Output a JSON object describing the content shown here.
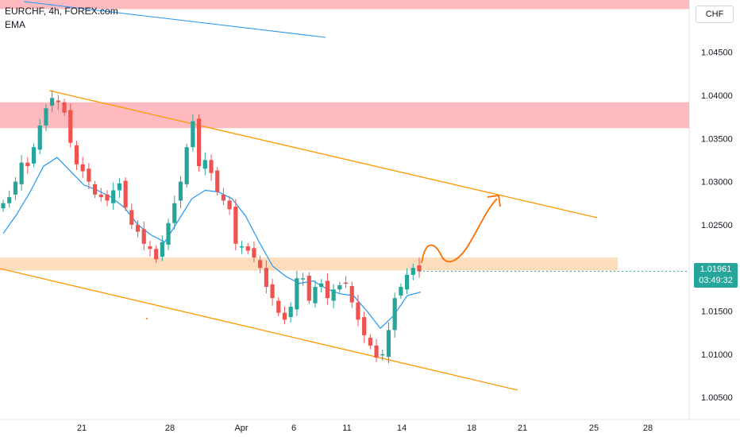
{
  "header": {
    "title": "EURCHF, 4h, FOREX.com",
    "indicator": "EMA"
  },
  "currency_button": "CHF",
  "price_tag": {
    "price": "1.01961",
    "countdown": "03:49:32"
  },
  "colors": {
    "bull": "#26a69a",
    "bear": "#ef5350",
    "ema": "#2196f3",
    "channel": "#ff9800",
    "resistance_zone": "#ffb3b8",
    "support_zone": "#fdd9b5",
    "projection_arrow": "#ff6d00",
    "grid": "#f0f3fa",
    "text": "#131722"
  },
  "chart_data": {
    "type": "candlestick",
    "symbol": "EURCHF",
    "timeframe": "4h",
    "y_axis": {
      "min": 1.0025,
      "max": 1.0515,
      "ticks": [
        "1.04500",
        "1.04000",
        "1.03500",
        "1.03000",
        "1.02500",
        "1.02000",
        "1.01500",
        "1.01000",
        "1.00500"
      ]
    },
    "x_axis": {
      "ticks": [
        "21",
        "28",
        "Apr",
        "6",
        "11",
        "14",
        "18",
        "21",
        "25",
        "28"
      ]
    },
    "series": [
      {
        "name": "EURCHF",
        "close_path": [
          1.0275,
          1.0282,
          1.03,
          1.0322,
          1.0318,
          1.034,
          1.0365,
          1.0385,
          1.0397,
          1.0392,
          1.038,
          1.0345,
          1.032,
          1.0312,
          1.03,
          1.0285,
          1.0282,
          1.0278,
          1.029,
          1.0298,
          1.027,
          1.025,
          1.0242,
          1.0228,
          1.0222,
          1.021,
          1.023,
          1.0252,
          1.0275,
          1.03,
          1.034,
          1.037,
          1.0318,
          1.0325,
          1.031,
          1.0288,
          1.0278,
          1.0268,
          1.0228,
          1.0225,
          1.022,
          1.0212,
          1.02,
          1.0178,
          1.0165,
          1.0148,
          1.014,
          1.0155,
          1.0188,
          1.0188,
          1.0162,
          1.0178,
          1.0182,
          1.0165,
          1.0175,
          1.018,
          1.0182,
          1.016,
          1.014,
          1.0122,
          1.011,
          1.0096,
          1.01,
          1.0128,
          1.0165,
          1.0178,
          1.0192,
          1.02,
          1.0196
        ]
      },
      {
        "name": "EMA",
        "values": [
          1.024,
          1.0262,
          1.0288,
          1.0318,
          1.0328,
          1.0312,
          1.0296,
          1.029,
          1.0282,
          1.027,
          1.025,
          1.0238,
          1.023,
          1.0255,
          1.028,
          1.029,
          1.0288,
          1.028,
          1.026,
          1.023,
          1.0202,
          1.019,
          1.0182,
          1.0185,
          1.0176,
          1.017,
          1.0168,
          1.015,
          1.013,
          1.0145,
          1.0168,
          1.0172
        ]
      }
    ],
    "annotations": {
      "resistance_zone": [
        1.0362,
        1.0392
      ],
      "top_zone": [
        1.05,
        1.0515
      ],
      "support_zone": [
        1.0197,
        1.0212
      ],
      "channel_upper": [
        [
          1.041,
          "start"
        ],
        [
          1.0258,
          "end"
        ]
      ],
      "channel_lower": [
        [
          1.0198,
          "start"
        ],
        [
          1.0058,
          "end"
        ]
      ],
      "projection_target": 1.0283
    }
  }
}
